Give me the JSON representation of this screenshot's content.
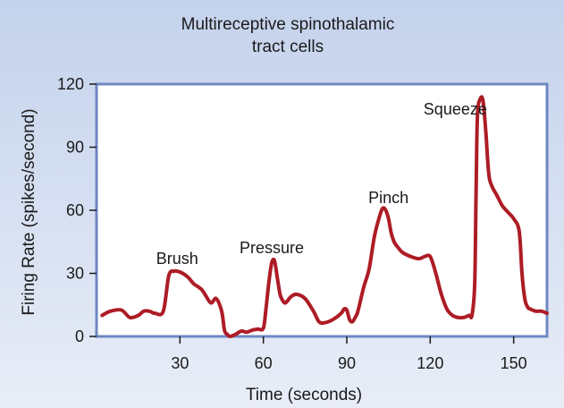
{
  "colors": {
    "background_top": "#c4d2ec",
    "background_bottom": "#e8edf7",
    "frame": "#6f87c2",
    "plot_area": "#ffffff",
    "series": "#ad1c25",
    "text": "#1a1a1a"
  },
  "chart_data": {
    "type": "line",
    "title": [
      "Multireceptive spinothalamic",
      "tract cells"
    ],
    "xlabel": "Time (seconds)",
    "ylabel": "Firing Rate (spikes/second)",
    "xlim": [
      0,
      162
    ],
    "ylim": [
      0,
      120
    ],
    "xticks": [
      30,
      60,
      90,
      120,
      150
    ],
    "yticks": [
      0,
      30,
      60,
      90,
      120
    ],
    "grid": false,
    "legend": "none",
    "series": [
      {
        "x": [
          2,
          5,
          9,
          12,
          15,
          17,
          19,
          21,
          24,
          26,
          28,
          29,
          31,
          33,
          35,
          38,
          41,
          43,
          45,
          46,
          47,
          48,
          50,
          52,
          54,
          56,
          58,
          60,
          61,
          62,
          63,
          64,
          65,
          66,
          67,
          68,
          70,
          72,
          75,
          78,
          80,
          82,
          85,
          88,
          89,
          90,
          91,
          92,
          93,
          94,
          96,
          98,
          100,
          102,
          103,
          104,
          105,
          106,
          107,
          108,
          110,
          113,
          116,
          118,
          120,
          122,
          124,
          126,
          128,
          130,
          132,
          134,
          135,
          136,
          136.5,
          137,
          138,
          139,
          140,
          141,
          142,
          144,
          146,
          148,
          150,
          152,
          153,
          154,
          155,
          156,
          158,
          160,
          162
        ],
        "y": [
          10,
          12,
          12.5,
          9,
          10,
          12,
          12,
          11,
          12,
          29,
          31,
          31,
          30,
          28,
          25,
          22,
          16,
          18,
          12,
          3,
          1,
          0,
          1,
          2.5,
          2,
          3,
          3.5,
          4,
          14,
          26,
          35,
          36,
          28,
          20,
          17,
          16,
          19,
          20,
          18,
          12,
          7,
          6.5,
          8,
          11,
          13,
          12.5,
          8,
          7,
          9,
          12,
          23,
          32,
          48,
          58,
          61,
          60,
          56,
          49,
          45,
          43,
          40,
          38,
          37,
          38,
          38,
          30,
          20,
          13,
          10,
          9,
          9,
          10,
          10,
          25,
          70,
          105,
          113,
          112,
          97,
          78,
          72,
          67,
          62,
          59,
          56,
          50,
          30,
          18,
          14,
          13,
          12,
          12,
          11
        ]
      }
    ],
    "annotations": [
      {
        "text": "Brush",
        "x": 29,
        "y": 34.5
      },
      {
        "text": "Pressure",
        "x": 63,
        "y": 39.5
      },
      {
        "text": "Pinch",
        "x": 105,
        "y": 63.5
      },
      {
        "text": "Squeeze",
        "x": 129,
        "y": 105.5
      }
    ]
  }
}
